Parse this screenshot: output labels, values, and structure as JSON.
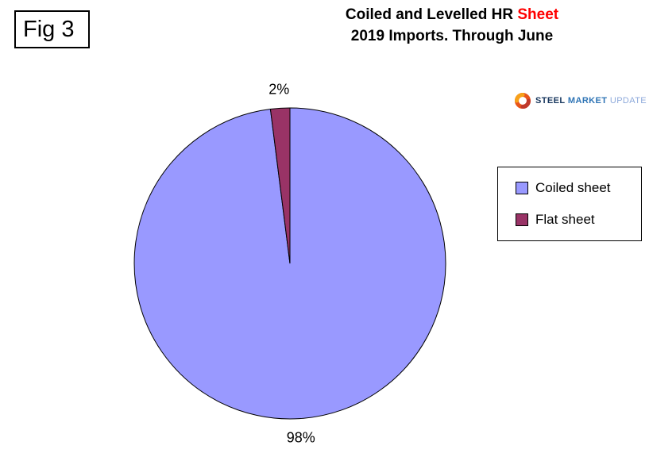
{
  "fig_label": "Fig 3",
  "title": {
    "line1_black": "Coiled and Levelled HR ",
    "line1_red": "Sheet",
    "line2": "2019 Imports. Through June"
  },
  "logo": {
    "steel": "STEEL",
    "market": "MARKET",
    "update": "UPDATE"
  },
  "legend": [
    {
      "label": "Coiled sheet",
      "color": "#9999FF"
    },
    {
      "label": "Flat sheet",
      "color": "#993366"
    }
  ],
  "chart_data": {
    "type": "pie",
    "title": "Coiled and Levelled HR Sheet - 2019 Imports. Through June",
    "labels": [
      "Coiled sheet",
      "Flat sheet"
    ],
    "values": [
      98,
      2
    ],
    "unit": "%",
    "data_labels": [
      "98%",
      "2%"
    ],
    "colors": [
      "#9999FF",
      "#993366"
    ],
    "start_angle_deg": 0,
    "direction": "clockwise",
    "legend_position": "right",
    "slice_border_color": "#000000"
  }
}
